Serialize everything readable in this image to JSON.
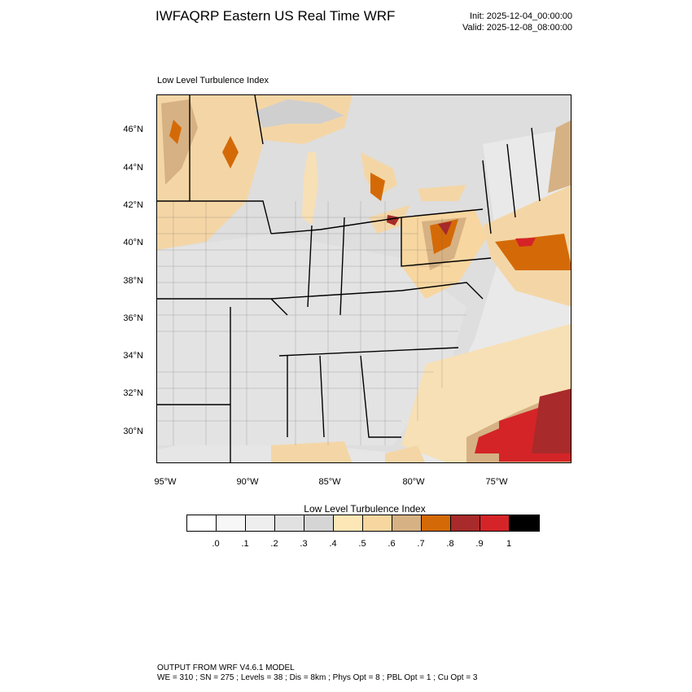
{
  "header": {
    "title": "IWFAQRP Eastern US Real Time WRF",
    "init": "Init: 2025-12-04_00:00:00",
    "valid": "Valid: 2025-12-08_08:00:00"
  },
  "map": {
    "field_label": "Low Level Turbulence Index",
    "lat_labels": [
      "46°N",
      "44°N",
      "42°N",
      "40°N",
      "38°N",
      "36°N",
      "34°N",
      "32°N",
      "30°N"
    ],
    "lon_labels": [
      "95°W",
      "90°W",
      "85°W",
      "80°W",
      "75°W"
    ]
  },
  "colorbar": {
    "title": "Low Level Turbulence Index",
    "colors": [
      "#ffffff",
      "#f7f7f7",
      "#eeeeee",
      "#e1e1e1",
      "#d5d5d5",
      "#fee7b6",
      "#f7d6a0",
      "#d6b183",
      "#d46a07",
      "#a82a2a",
      "#d42428",
      "#000000"
    ],
    "labels": [
      ".0",
      ".1",
      ".2",
      ".3",
      ".4",
      ".5",
      ".6",
      ".7",
      ".8",
      ".9",
      "1"
    ]
  },
  "footer": {
    "line1": "OUTPUT FROM WRF V4.6.1 MODEL",
    "line2": "WE = 310 ; SN = 275 ; Levels = 38 ; Dis = 8km ; Phys Opt = 8 ; PBL Opt = 1 ; Cu Opt = 3"
  }
}
